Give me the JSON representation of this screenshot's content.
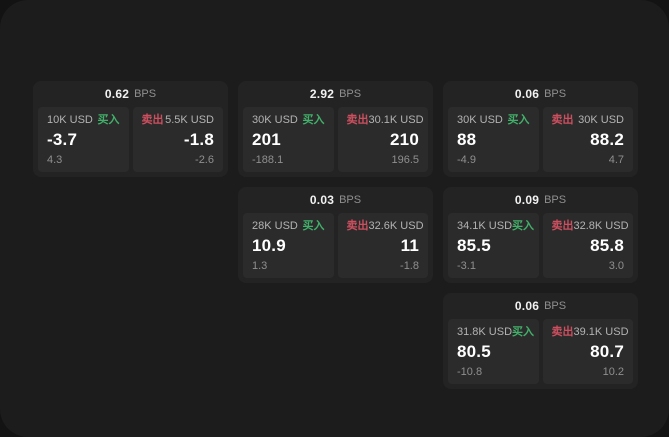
{
  "page": {
    "backdrop_color": "#131313",
    "surface_color": "#1c1c1c",
    "card_color": "#232323",
    "panel_color": "#2b2b2b",
    "buy_green": "#42b06a",
    "sell_red": "#cc4f5f"
  },
  "labels": {
    "unit": "BPS",
    "buy": "买入",
    "sell": "卖出"
  },
  "cards": [
    {
      "row": 1,
      "col": 1,
      "bps": "0.62",
      "buy": {
        "amount": "10K USD",
        "value": "-3.7",
        "sub": "4.3"
      },
      "sell": {
        "amount": "5.5K USD",
        "value": "-1.8",
        "sub": "-2.6"
      }
    },
    {
      "row": 1,
      "col": 2,
      "bps": "2.92",
      "buy": {
        "amount": "30K USD",
        "value": "201",
        "sub": "-188.1"
      },
      "sell": {
        "amount": "30.1K USD",
        "value": "210",
        "sub": "196.5"
      }
    },
    {
      "row": 1,
      "col": 3,
      "bps": "0.06",
      "buy": {
        "amount": "30K USD",
        "value": "88",
        "sub": "-4.9"
      },
      "sell": {
        "amount": "30K USD",
        "value": "88.2",
        "sub": "4.7"
      }
    },
    {
      "row": 2,
      "col": 2,
      "bps": "0.03",
      "buy": {
        "amount": "28K USD",
        "value": "10.9",
        "sub": "1.3"
      },
      "sell": {
        "amount": "32.6K USD",
        "value": "11",
        "sub": "-1.8"
      }
    },
    {
      "row": 2,
      "col": 3,
      "bps": "0.09",
      "buy": {
        "amount": "34.1K USD",
        "value": "85.5",
        "sub": "-3.1"
      },
      "sell": {
        "amount": "32.8K USD",
        "value": "85.8",
        "sub": "3.0"
      }
    },
    {
      "row": 3,
      "col": 3,
      "bps": "0.06",
      "buy": {
        "amount": "31.8K USD",
        "value": "80.5",
        "sub": "-10.8"
      },
      "sell": {
        "amount": "39.1K USD",
        "value": "80.7",
        "sub": "10.2"
      }
    }
  ]
}
